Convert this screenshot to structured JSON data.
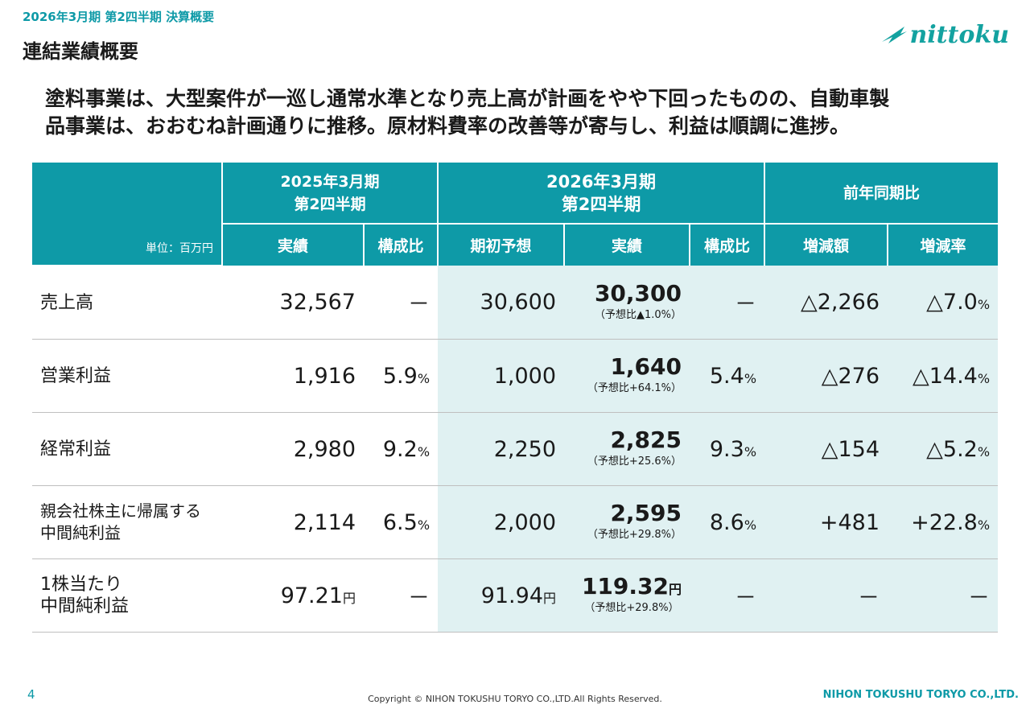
{
  "header": {
    "eyebrow": "2026年3月期 第2四半期 決算概要",
    "title": "連結業績概要",
    "logo_text": "nittoku"
  },
  "lead_text": "塗料事業は、大型案件が一巡し通常水準となり売上高が計画をやや下回ったものの、自動車製\n品事業は、おおむね計画通りに推移。原材料費率の改善等が寄与し、利益は順調に進捗。",
  "table": {
    "unit_label": "単位：百万円",
    "group_headers": {
      "prev": "2025年3月期\n第2四半期",
      "curr": "2026年3月期\n第2四半期",
      "yoy": "前年同期比"
    },
    "sub_headers": {
      "prev_actual": "実績",
      "prev_ratio": "構成比",
      "curr_forecast": "期初予想",
      "curr_actual": "実績",
      "curr_ratio": "構成比",
      "yoy_change": "増減額",
      "yoy_rate": "増減率"
    },
    "rows": [
      {
        "label": "売上高",
        "prev_actual": "32,567",
        "prev_actual_unit": "",
        "prev_ratio": "－",
        "prev_ratio_unit": "",
        "forecast": "30,600",
        "forecast_unit": "",
        "actual": "30,300",
        "actual_unit": "",
        "actual_note": "（予想比▲1.0%）",
        "curr_ratio": "－",
        "curr_ratio_unit": "",
        "change": "△2,266",
        "rate": "△7.0",
        "rate_unit": "%"
      },
      {
        "label": "営業利益",
        "prev_actual": "1,916",
        "prev_actual_unit": "",
        "prev_ratio": "5.9",
        "prev_ratio_unit": "%",
        "forecast": "1,000",
        "forecast_unit": "",
        "actual": "1,640",
        "actual_unit": "",
        "actual_note": "（予想比+64.1%）",
        "curr_ratio": "5.4",
        "curr_ratio_unit": "%",
        "change": "△276",
        "rate": "△14.4",
        "rate_unit": "%"
      },
      {
        "label": "経常利益",
        "prev_actual": "2,980",
        "prev_actual_unit": "",
        "prev_ratio": "9.2",
        "prev_ratio_unit": "%",
        "forecast": "2,250",
        "forecast_unit": "",
        "actual": "2,825",
        "actual_unit": "",
        "actual_note": "（予想比+25.6%）",
        "curr_ratio": "9.3",
        "curr_ratio_unit": "%",
        "change": "△154",
        "rate": "△5.2",
        "rate_unit": "%"
      },
      {
        "label": "親会社株主に帰属する\n中間純利益",
        "prev_actual": "2,114",
        "prev_actual_unit": "",
        "prev_ratio": "6.5",
        "prev_ratio_unit": "%",
        "forecast": "2,000",
        "forecast_unit": "",
        "actual": "2,595",
        "actual_unit": "",
        "actual_note": "（予想比+29.8%）",
        "curr_ratio": "8.6",
        "curr_ratio_unit": "%",
        "change": "+481",
        "rate": "+22.8",
        "rate_unit": "%"
      },
      {
        "label": "1株当たり\n中間純利益",
        "prev_actual": "97.21",
        "prev_actual_unit": "円",
        "prev_ratio": "－",
        "prev_ratio_unit": "",
        "forecast": "91.94",
        "forecast_unit": "円",
        "actual": "119.32",
        "actual_unit": "円",
        "actual_note": "（予想比+29.8%）",
        "curr_ratio": "－",
        "curr_ratio_unit": "",
        "change": "－",
        "rate": "－",
        "rate_unit": ""
      }
    ]
  },
  "footer": {
    "page_number": "4",
    "copyright": "Copyright © NIHON TOKUSHU TORYO CO.,LTD.All Rights Reserved.",
    "company": "NIHON TOKUSHU TORYO CO.,LTD."
  },
  "colors": {
    "accent": "#0e9aa7",
    "shade": "#e0f1f2",
    "logo": "#13a2a0"
  }
}
